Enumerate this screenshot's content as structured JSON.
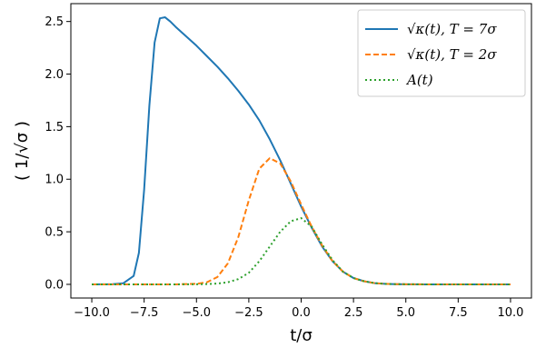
{
  "chart_data": {
    "type": "line",
    "xlabel": "t/σ",
    "ylabel": "( 1/√σ )",
    "xlim": [
      -11.0,
      11.0
    ],
    "ylim": [
      -0.13,
      2.67
    ],
    "xticks": [
      -10.0,
      -7.5,
      -5.0,
      -2.5,
      0.0,
      2.5,
      5.0,
      7.5,
      10.0
    ],
    "xtick_labels": [
      "−10.0",
      "−7.5",
      "−5.0",
      "−2.5",
      "0.0",
      "2.5",
      "5.0",
      "7.5",
      "10.0"
    ],
    "yticks": [
      0.0,
      0.5,
      1.0,
      1.5,
      2.0,
      2.5
    ],
    "ytick_labels": [
      "0.0",
      "0.5",
      "1.0",
      "1.5",
      "2.0",
      "2.5"
    ],
    "grid": false,
    "legend_position": "top-right",
    "series": [
      {
        "name": "√κ(t), T = 7σ",
        "color": "#1f77b4",
        "style": "solid",
        "x": [
          -10,
          -9,
          -8.5,
          -8,
          -7.75,
          -7.5,
          -7.25,
          -7,
          -6.75,
          -6.5,
          -6.25,
          -6,
          -5.5,
          -5,
          -4.5,
          -4,
          -3.5,
          -3,
          -2.5,
          -2,
          -1.5,
          -1,
          -0.5,
          0,
          0.5,
          1,
          1.5,
          2,
          2.5,
          3,
          3.5,
          4,
          4.5,
          5,
          6,
          7,
          8,
          9,
          10
        ],
        "y": [
          0,
          0.002,
          0.01,
          0.08,
          0.3,
          0.9,
          1.7,
          2.3,
          2.53,
          2.54,
          2.5,
          2.45,
          2.36,
          2.27,
          2.17,
          2.07,
          1.96,
          1.84,
          1.71,
          1.56,
          1.38,
          1.18,
          0.96,
          0.74,
          0.54,
          0.36,
          0.22,
          0.12,
          0.06,
          0.03,
          0.012,
          0.005,
          0.002,
          0.001,
          0,
          0,
          0,
          0,
          0
        ]
      },
      {
        "name": "√κ(t), T = 2σ",
        "color": "#ff7f0e",
        "style": "dashed",
        "x": [
          -10,
          -6,
          -5,
          -4.5,
          -4,
          -3.5,
          -3,
          -2.5,
          -2,
          -1.5,
          -1,
          -0.5,
          0,
          0.5,
          1,
          1.5,
          2,
          2.5,
          3,
          3.5,
          4,
          4.5,
          5,
          6,
          7,
          8,
          9,
          10
        ],
        "y": [
          0,
          0,
          0.005,
          0.02,
          0.07,
          0.2,
          0.45,
          0.8,
          1.1,
          1.2,
          1.15,
          0.98,
          0.76,
          0.55,
          0.37,
          0.22,
          0.12,
          0.06,
          0.03,
          0.012,
          0.005,
          0.002,
          0.001,
          0,
          0,
          0,
          0,
          0
        ]
      },
      {
        "name": "A(t)",
        "color": "#2ca02c",
        "style": "dotted",
        "x": [
          -10,
          -6,
          -5,
          -4.5,
          -4,
          -3.5,
          -3,
          -2.5,
          -2,
          -1.5,
          -1,
          -0.5,
          0,
          0.5,
          1,
          1.5,
          2,
          2.5,
          3,
          3.5,
          4,
          4.5,
          5,
          6,
          7,
          8,
          9,
          10
        ],
        "y": [
          0,
          0,
          0.001,
          0.003,
          0.008,
          0.02,
          0.05,
          0.11,
          0.22,
          0.36,
          0.5,
          0.6,
          0.63,
          0.55,
          0.38,
          0.23,
          0.12,
          0.06,
          0.03,
          0.012,
          0.005,
          0.002,
          0.001,
          0,
          0,
          0,
          0,
          0
        ]
      }
    ]
  }
}
